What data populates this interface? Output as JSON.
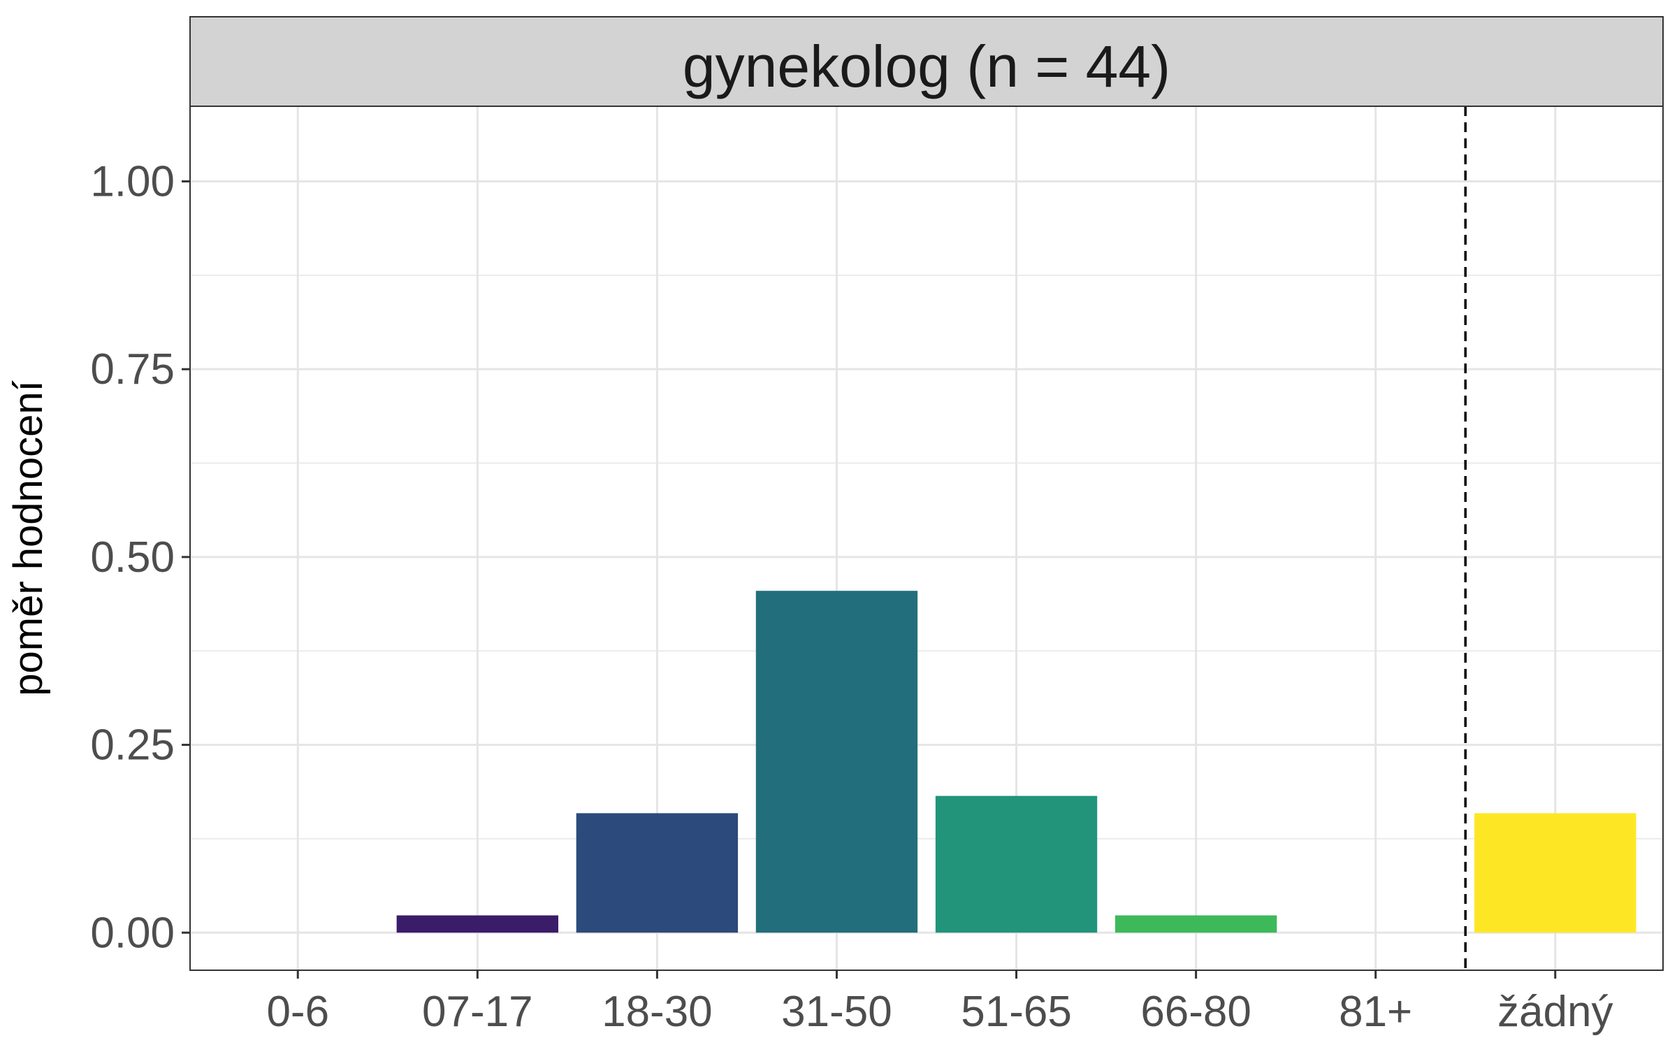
{
  "chart_data": {
    "type": "bar",
    "title": "gynekolog (n = 44)",
    "xlabel": "",
    "ylabel": "poměr hodnocení",
    "categories": [
      "0-6",
      "07-17",
      "18-30",
      "31-50",
      "51-65",
      "66-80",
      "81+",
      "žádný"
    ],
    "values": [
      0.0,
      0.023,
      0.159,
      0.455,
      0.182,
      0.023,
      0.0,
      0.159
    ],
    "colors": [
      "#440154",
      "#3b1c69",
      "#2c4a7b",
      "#226e7c",
      "#21947a",
      "#3db95a",
      "#8fd744",
      "#fde725"
    ],
    "ylim": [
      -0.05,
      1.1
    ],
    "yticks": [
      0.0,
      0.25,
      0.5,
      0.75,
      1.0
    ],
    "ytick_labels": [
      "0.00",
      "0.25",
      "0.50",
      "0.75",
      "1.00"
    ],
    "separator_after_category": "81+",
    "grid": true,
    "legend": "none"
  }
}
